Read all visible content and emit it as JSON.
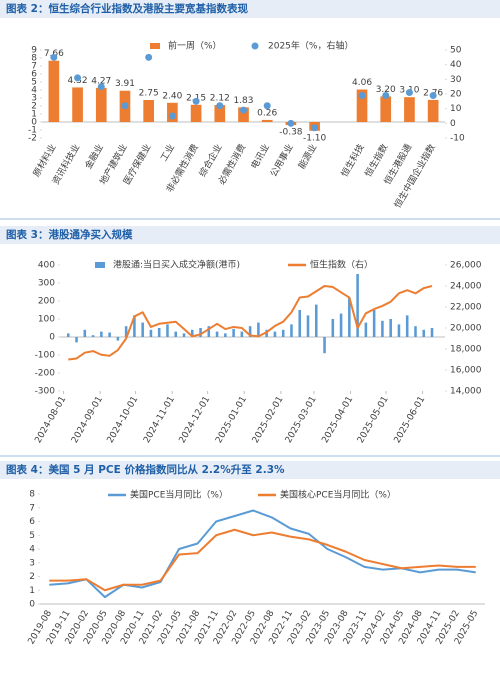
{
  "chart_data": [
    {
      "type": "bar",
      "title": "图表 2：恒生综合行业指数及港股主要宽基指数表现",
      "categories": [
        "原材料业",
        "资讯科技业",
        "金融业",
        "地产建筑业",
        "医疗保健业",
        "工业",
        "非必需性消费",
        "综合企业",
        "必需性消费",
        "电讯业",
        "公用事业",
        "能源业",
        null,
        "恒生科技",
        "恒生指数",
        "恒生港股通",
        "恒生中国企业指数"
      ],
      "series": [
        {
          "name": "前一周（%）",
          "color": "#ed7d31",
          "values": [
            7.66,
            4.32,
            4.27,
            3.91,
            2.75,
            2.4,
            2.15,
            2.12,
            1.83,
            0.26,
            -0.38,
            -1.1,
            null,
            4.06,
            3.2,
            3.1,
            2.76
          ],
          "value_labels": [
            "7.66",
            "4.32",
            "4.27",
            "3.91",
            "2.75",
            "2.40",
            "2.15",
            "2.12",
            "1.83",
            "0.26",
            "-0.38",
            "-1.10",
            null,
            "4.06",
            "3.20",
            "3.10",
            "2.76"
          ]
        },
        {
          "name": "2025年（%，右轴）",
          "color": "#5b9bd5",
          "type": "scatter",
          "axis": "y2",
          "values": [
            45,
            31,
            25,
            12,
            45,
            5,
            15,
            12,
            9,
            12,
            0,
            -3,
            null,
            19,
            19,
            21,
            19
          ]
        }
      ],
      "ylim": [
        -2,
        9
      ],
      "yticks": [
        -2,
        -1,
        0,
        1,
        2,
        3,
        4,
        5,
        6,
        7,
        8,
        9
      ],
      "y2lim": [
        -10,
        50
      ],
      "y2ticks": [
        -10,
        0,
        10,
        20,
        30,
        40,
        50
      ]
    },
    {
      "type": "bar",
      "title": "图表 3：港股通净买入规模",
      "x": [
        "2024-08-05",
        "2024-08-12",
        "2024-08-19",
        "2024-08-26",
        "2024-09-02",
        "2024-09-09",
        "2024-09-16",
        "2024-09-23",
        "2024-09-30",
        "2024-10-07",
        "2024-10-14",
        "2024-10-21",
        "2024-10-28",
        "2024-11-04",
        "2024-11-11",
        "2024-11-18",
        "2024-11-25",
        "2024-12-02",
        "2024-12-09",
        "2024-12-16",
        "2024-12-23",
        "2024-12-30",
        "2025-01-06",
        "2025-01-13",
        "2025-01-20",
        "2025-01-27",
        "2025-02-03",
        "2025-02-10",
        "2025-02-17",
        "2025-02-24",
        "2025-03-03",
        "2025-03-10",
        "2025-03-17",
        "2025-03-24",
        "2025-03-31",
        "2025-04-07",
        "2025-04-14",
        "2025-04-21",
        "2025-04-28",
        "2025-05-05",
        "2025-05-12",
        "2025-05-19",
        "2025-05-26",
        "2025-06-02",
        "2025-06-09"
      ],
      "series": [
        {
          "name": "港股通:当日买入成交净额(港币)",
          "color": "#5b9bd5",
          "values": [
            20,
            -30,
            40,
            10,
            30,
            25,
            -20,
            60,
            120,
            80,
            40,
            50,
            70,
            30,
            20,
            40,
            50,
            60,
            30,
            20,
            45,
            30,
            60,
            80,
            40,
            30,
            40,
            70,
            150,
            120,
            180,
            -90,
            100,
            130,
            220,
            350,
            80,
            150,
            90,
            100,
            70,
            120,
            60,
            40,
            50
          ]
        },
        {
          "name": "恒生指数（右）",
          "color": "#ed7d31",
          "type": "line",
          "axis": "y2",
          "values": [
            17000,
            17100,
            17650,
            17800,
            17450,
            17350,
            17900,
            19000,
            21100,
            21500,
            20100,
            20400,
            20500,
            20600,
            19900,
            19200,
            19400,
            19900,
            20400,
            19900,
            20100,
            20000,
            19300,
            19200,
            19600,
            20200,
            20600,
            21500,
            22900,
            23000,
            23500,
            24000,
            23900,
            23400,
            22900,
            20000,
            21400,
            21800,
            22100,
            22500,
            23300,
            23600,
            23300,
            23800,
            24000
          ]
        }
      ],
      "xlim": [
        "2024-07-29",
        "2025-06-20"
      ],
      "xticks": [
        "2024-08-01",
        "2024-09-01",
        "2024-10-01",
        "2024-11-01",
        "2024-12-01",
        "2025-01-01",
        "2025-02-01",
        "2025-03-01",
        "2025-04-01",
        "2025-05-01",
        "2025-06-01"
      ],
      "ylim": [
        -300,
        400
      ],
      "yticks": [
        -300,
        -200,
        -100,
        0,
        100,
        200,
        300,
        400
      ],
      "y2lim": [
        14000,
        26000
      ],
      "y2ticks": [
        {
          "value": 14000,
          "label": "14,000"
        },
        {
          "value": 16000,
          "label": "16,000"
        },
        {
          "value": 18000,
          "label": "18,000"
        },
        {
          "value": 20000,
          "label": "20,000"
        },
        {
          "value": 22000,
          "label": "22,000"
        },
        {
          "value": 24000,
          "label": "24,000"
        },
        {
          "value": 26000,
          "label": "26,000"
        }
      ]
    },
    {
      "type": "line",
      "title": "图表 4：美国 5 月 PCE 价格指数同比从 2.2%升至 2.3%",
      "categories": [
        "2019-08",
        "2019-11",
        "2020-02",
        "2020-05",
        "2020-08",
        "2020-11",
        "2021-02",
        "2021-05",
        "2021-08",
        "2021-11",
        "2022-02",
        "2022-05",
        "2022-08",
        "2022-11",
        "2023-02",
        "2023-05",
        "2023-08",
        "2023-11",
        "2024-02",
        "2024-05",
        "2024-08",
        "2024-11",
        "2025-02",
        "2025-05"
      ],
      "series": [
        {
          "name": "美国PCE当月同比（%）",
          "color": "#5b9bd5",
          "values": [
            1.4,
            1.5,
            1.8,
            0.5,
            1.4,
            1.2,
            1.6,
            4.0,
            4.4,
            6.0,
            6.4,
            6.8,
            6.3,
            5.5,
            5.1,
            4.0,
            3.4,
            2.7,
            2.5,
            2.6,
            2.3,
            2.5,
            2.5,
            2.3
          ]
        },
        {
          "name": "美国核心PCE当月同比（%）",
          "color": "#ed7d31",
          "values": [
            1.7,
            1.7,
            1.8,
            1.0,
            1.4,
            1.4,
            1.7,
            3.6,
            3.7,
            5.0,
            5.4,
            5.0,
            5.2,
            4.9,
            4.7,
            4.3,
            3.8,
            3.2,
            2.9,
            2.6,
            2.7,
            2.8,
            2.7,
            2.7
          ]
        }
      ],
      "ylim": [
        0,
        8
      ],
      "yticks": [
        0,
        1,
        2,
        3,
        4,
        5,
        6,
        7,
        8
      ]
    }
  ]
}
